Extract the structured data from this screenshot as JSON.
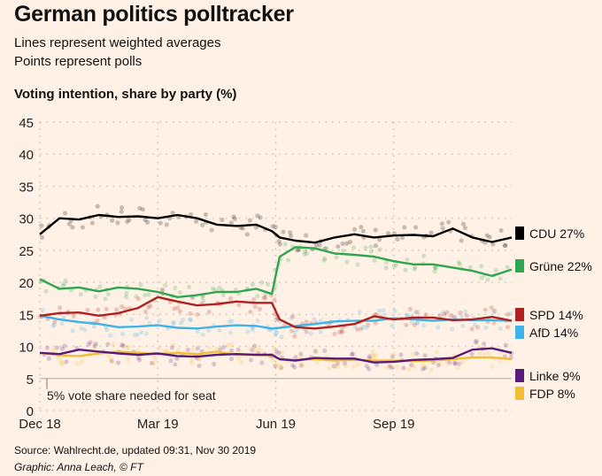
{
  "header": {
    "title": "German politics polltracker",
    "subtitle_lines": [
      "Lines represent weighted averages",
      "Points represent polls"
    ]
  },
  "footer": {
    "source": "Source: Wahlrecht.de, updated 09:31, Nov 30 2019",
    "credit": "Graphic: Anna Leach, © FT"
  },
  "chart_data": {
    "type": "line",
    "title": "Voting intention, share by party (%)",
    "xlabel": "",
    "ylabel": "",
    "ylim": [
      0,
      45
    ],
    "yticks": [
      0,
      5,
      10,
      15,
      20,
      25,
      30,
      35,
      40,
      45
    ],
    "xlim_months": [
      0,
      12
    ],
    "xticks": [
      {
        "label": "Dec 18",
        "month": 0
      },
      {
        "label": "Mar 19",
        "month": 3
      },
      {
        "label": "Jun 19",
        "month": 6
      },
      {
        "label": "Sep 19",
        "month": 9
      }
    ],
    "grid": true,
    "legend_position": "right",
    "annotation": {
      "text": "5% vote share needed for seat",
      "y": 5
    },
    "x": [
      0,
      0.5,
      1,
      1.5,
      2,
      2.5,
      3,
      3.5,
      4,
      4.5,
      5,
      5.5,
      5.9,
      6.1,
      6.5,
      7,
      7.5,
      8,
      8.5,
      9,
      9.5,
      10,
      10.5,
      11,
      11.5,
      12
    ],
    "series": [
      {
        "name": "CDU",
        "label": "CDU 27%",
        "color": "#000000",
        "values": [
          27.5,
          30,
          29.8,
          30.5,
          30.2,
          30.3,
          30,
          30.5,
          30,
          29,
          28.8,
          29,
          28,
          27,
          26.5,
          26.2,
          27,
          27.5,
          27,
          27.3,
          27.4,
          27.2,
          28.4,
          27,
          26.3,
          27
        ]
      },
      {
        "name": "Grüne",
        "label": "Grüne 22%",
        "color": "#2ea64f",
        "values": [
          20.5,
          19,
          19.2,
          18.6,
          19.2,
          19,
          18.5,
          17.7,
          18,
          18.5,
          18.5,
          19,
          18.2,
          24,
          25.5,
          25.3,
          24.5,
          24.3,
          24,
          23.3,
          22.8,
          22.8,
          22.3,
          21.8,
          21,
          22
        ]
      },
      {
        "name": "SPD",
        "label": "SPD 14%",
        "color": "#b0201e",
        "values": [
          14.8,
          15.2,
          15.3,
          14.8,
          15.2,
          16,
          17.7,
          17,
          16.4,
          16.6,
          17,
          16.8,
          16.8,
          14.2,
          13,
          12.8,
          13.1,
          13.5,
          14.7,
          14.2,
          14.5,
          14.5,
          14.1,
          14.2,
          14.6,
          14
        ]
      },
      {
        "name": "AfD",
        "label": "AfD 14%",
        "color": "#3fb3e8",
        "values": [
          14.8,
          14.2,
          13.8,
          13.5,
          13,
          13.1,
          13.3,
          12.9,
          12.8,
          13.1,
          13.3,
          13.2,
          12.8,
          12.9,
          13.2,
          13.5,
          13.9,
          14,
          14,
          14.4,
          14.2,
          14,
          14.2,
          14.1,
          14.1,
          14
        ]
      },
      {
        "name": "Linke",
        "label": "Linke 9%",
        "color": "#5a1a7a",
        "values": [
          9,
          8.8,
          9.5,
          9.2,
          8.9,
          8.7,
          8.9,
          8.5,
          8.4,
          8.7,
          8.8,
          8.7,
          8.7,
          8,
          7.8,
          8.2,
          8.1,
          8.1,
          7.5,
          7.6,
          7.9,
          8,
          8.2,
          9.5,
          9.7,
          9
        ]
      },
      {
        "name": "FDP",
        "label": "FDP 8%",
        "color": "#f2bd34",
        "values": [
          9,
          8.6,
          8.5,
          8.9,
          9.2,
          9,
          8.8,
          9,
          8.8,
          9.2,
          8.7,
          8.7,
          8.6,
          8,
          7.9,
          8,
          7.8,
          7.9,
          7.8,
          7.8,
          7.7,
          7.8,
          8,
          8.3,
          8.3,
          8
        ]
      }
    ]
  }
}
